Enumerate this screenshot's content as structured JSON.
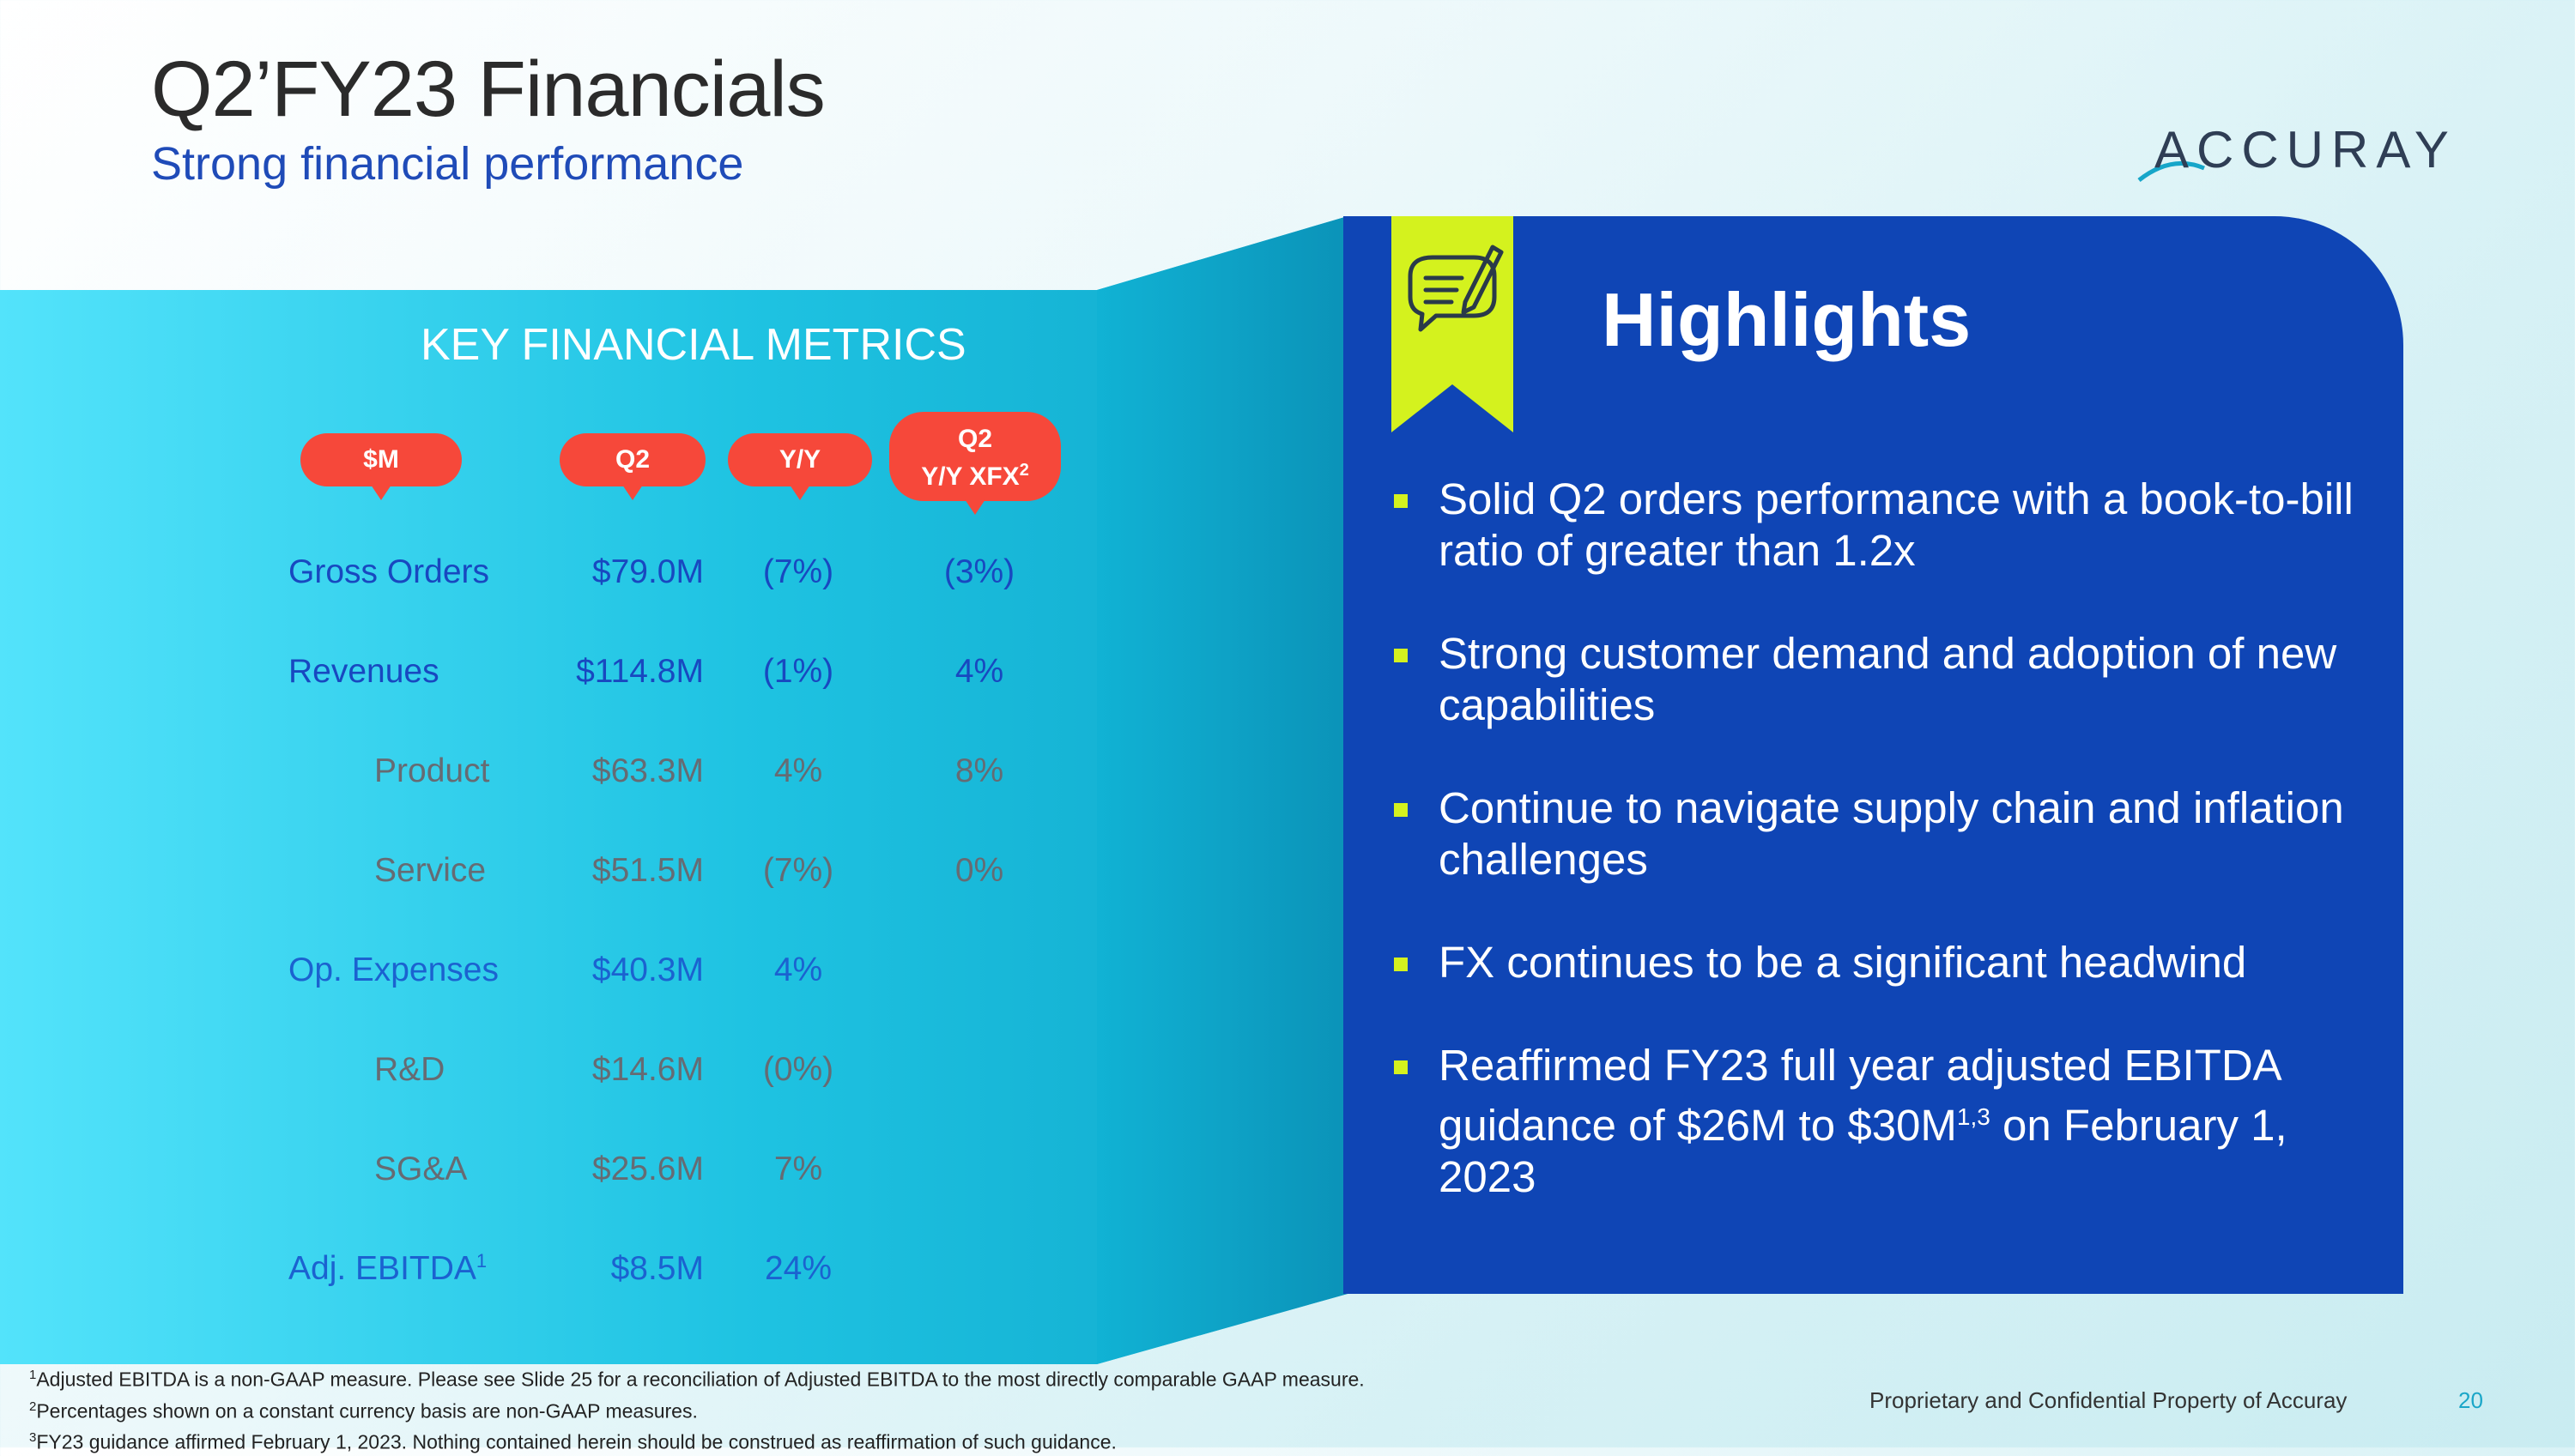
{
  "header": {
    "title": "Q2’FY23 Financials",
    "subtitle": "Strong financial performance",
    "logo_text": "ACCURAY"
  },
  "metrics": {
    "section_title": "KEY FINANCIAL METRICS",
    "columns": {
      "m": "$M",
      "q2": "Q2",
      "yy": "Y/Y",
      "xfx_line1": "Q2",
      "xfx_line2": "Y/Y XFX",
      "xfx_sup": "2"
    },
    "rows": [
      {
        "label": "Gross Orders",
        "q2": "$79.0M",
        "yy": "(7%)",
        "xfx": "(3%)"
      },
      {
        "label": "Revenues",
        "q2": "$114.8M",
        "yy": "(1%)",
        "xfx": "4%"
      },
      {
        "label": "Product",
        "q2": "$63.3M",
        "yy": "4%",
        "xfx": "8%"
      },
      {
        "label": "Service",
        "q2": "$51.5M",
        "yy": "(7%)",
        "xfx": "0%"
      },
      {
        "label": "Op. Expenses",
        "q2": "$40.3M",
        "yy": "4%",
        "xfx": ""
      },
      {
        "label": "R&D",
        "q2": "$14.6M",
        "yy": "(0%)",
        "xfx": ""
      },
      {
        "label": "SG&A",
        "q2": "$25.6M",
        "yy": "7%",
        "xfx": ""
      },
      {
        "label": "Adj. EBITDA",
        "label_sup": "1",
        "q2": "$8.5M",
        "yy": "24%",
        "xfx": ""
      }
    ]
  },
  "highlights": {
    "title": "Highlights",
    "bullets": [
      "Solid Q2 orders performance with a book-to-bill ratio of greater than 1.2x",
      "Strong customer demand and adoption of new capabilities",
      "Continue to navigate supply chain and inflation challenges",
      "FX continues to be a significant headwind"
    ],
    "last_bullet_pre": "Reaffirmed FY23 full year adjusted EBITDA guidance of $26M to $30M",
    "last_bullet_sup": "1,3",
    "last_bullet_post": " on February 1, 2023"
  },
  "footnotes": [
    {
      "sup": "1",
      "text": "Adjusted EBITDA is a non-GAAP measure.  Please see Slide 25 for a reconciliation of Adjusted EBITDA to the most directly comparable GAAP measure."
    },
    {
      "sup": "2",
      "text": "Percentages shown on a constant currency basis are non-GAAP measures."
    },
    {
      "sup": "3",
      "text": "FY23 guidance affirmed February 1, 2023.  Nothing contained herein should be construed as reaffirmation of such guidance."
    }
  ],
  "footer": {
    "proprietary": "Proprietary and Confidential Property of Accuray",
    "page_number": "20"
  },
  "colors": {
    "title": "#2b2b2b",
    "subtitle": "#1f4bb8",
    "panel_blue": "#0f45b5",
    "cyan_panel": "#22c3df",
    "pill_red": "#f6483a",
    "accent_green": "#d4f21e"
  },
  "icons": {
    "badge": "chat-note-pencil-icon",
    "bullet": "square-bullet"
  }
}
